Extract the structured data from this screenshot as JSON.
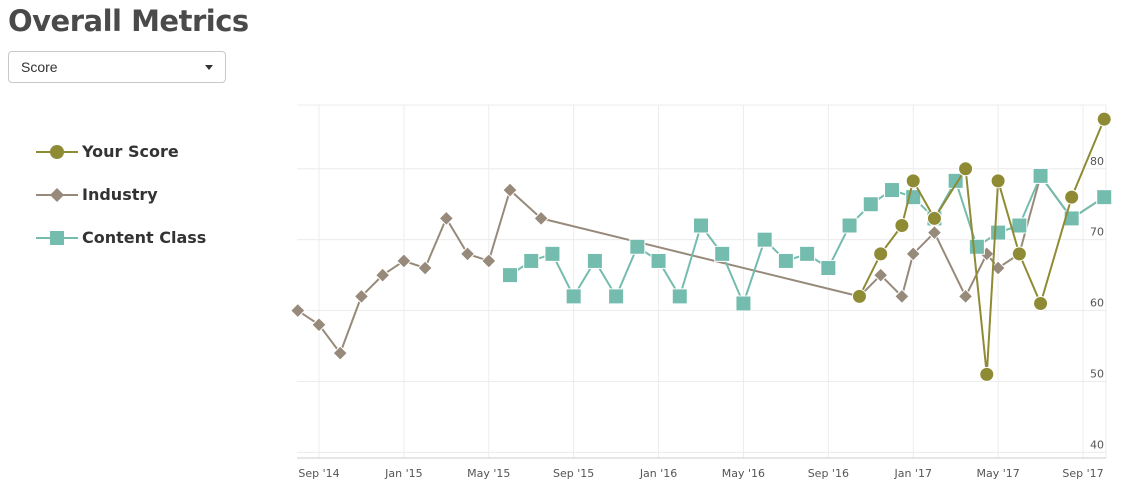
{
  "page": {
    "title": "Overall Metrics",
    "selector": {
      "value": "Score"
    }
  },
  "colors": {
    "your_score": "#8f8b35",
    "industry": "#978a7b",
    "content_class": "#74bcae",
    "grid": "#ececec",
    "tick_text": "#555555"
  },
  "chart_data": {
    "type": "line",
    "title": "",
    "xlabel": "",
    "ylabel": "",
    "x_ticks": [
      "Sep '14",
      "Jan '15",
      "May '15",
      "Sep '15",
      "Jan '16",
      "May '16",
      "Sep '16",
      "Jan '17",
      "May '17",
      "Sep '17"
    ],
    "y_ticks": [
      40,
      50,
      60,
      70,
      80
    ],
    "ylim": [
      39.2,
      89
    ],
    "y_axis_side": "right",
    "grid": true,
    "legend_position": "left",
    "series": [
      {
        "name": "Your Score",
        "marker": "circle",
        "color": "#8f8b35",
        "points": [
          [
            "2016-10-15",
            62
          ],
          [
            "2016-11-15",
            68
          ],
          [
            "2016-12-15",
            72
          ],
          [
            "2017-01-01",
            78.3
          ],
          [
            "2017-02-01",
            73
          ],
          [
            "2017-03-15",
            80
          ],
          [
            "2017-04-15",
            51
          ],
          [
            "2017-05-01",
            78.3
          ],
          [
            "2017-06-01",
            68
          ],
          [
            "2017-07-01",
            61
          ],
          [
            "2017-08-15",
            76
          ],
          [
            "2017-10-01",
            87
          ]
        ]
      },
      {
        "name": "Industry",
        "marker": "diamond",
        "color": "#978a7b",
        "points": [
          [
            "2014-08-01",
            60
          ],
          [
            "2014-09-01",
            58
          ],
          [
            "2014-10-01",
            54
          ],
          [
            "2014-11-01",
            62
          ],
          [
            "2014-12-01",
            65
          ],
          [
            "2015-01-01",
            67
          ],
          [
            "2015-02-01",
            66
          ],
          [
            "2015-03-01",
            73
          ],
          [
            "2015-04-01",
            68
          ],
          [
            "2015-05-01",
            67
          ],
          [
            "2015-06-01",
            77
          ],
          [
            "2015-07-15",
            73
          ],
          [
            "2016-10-15",
            62
          ],
          [
            "2016-11-15",
            65
          ],
          [
            "2016-12-15",
            62
          ],
          [
            "2017-01-01",
            68
          ],
          [
            "2017-02-01",
            71
          ],
          [
            "2017-03-15",
            62
          ],
          [
            "2017-04-15",
            68
          ],
          [
            "2017-05-01",
            66
          ],
          [
            "2017-06-01",
            68
          ],
          [
            "2017-07-01",
            79
          ],
          [
            "2017-08-15",
            73
          ],
          [
            "2017-10-01",
            76
          ]
        ]
      },
      {
        "name": "Content Class",
        "marker": "square",
        "color": "#74bcae",
        "points": [
          [
            "2015-06-01",
            65
          ],
          [
            "2015-07-01",
            67
          ],
          [
            "2015-08-01",
            68
          ],
          [
            "2015-09-01",
            62
          ],
          [
            "2015-10-01",
            67
          ],
          [
            "2015-11-01",
            62
          ],
          [
            "2015-12-01",
            69
          ],
          [
            "2016-01-01",
            67
          ],
          [
            "2016-02-01",
            62
          ],
          [
            "2016-03-01",
            72
          ],
          [
            "2016-04-01",
            68
          ],
          [
            "2016-05-01",
            61
          ],
          [
            "2016-06-01",
            70
          ],
          [
            "2016-07-01",
            67
          ],
          [
            "2016-08-01",
            68
          ],
          [
            "2016-09-01",
            66
          ],
          [
            "2016-10-01",
            72
          ],
          [
            "2016-11-01",
            75
          ],
          [
            "2016-12-01",
            77
          ],
          [
            "2017-01-01",
            76
          ],
          [
            "2017-02-01",
            73
          ],
          [
            "2017-03-01",
            78.3
          ],
          [
            "2017-04-01",
            69
          ],
          [
            "2017-05-01",
            71
          ],
          [
            "2017-06-01",
            72
          ],
          [
            "2017-07-01",
            79
          ],
          [
            "2017-08-15",
            73
          ],
          [
            "2017-10-01",
            76
          ]
        ]
      }
    ]
  }
}
